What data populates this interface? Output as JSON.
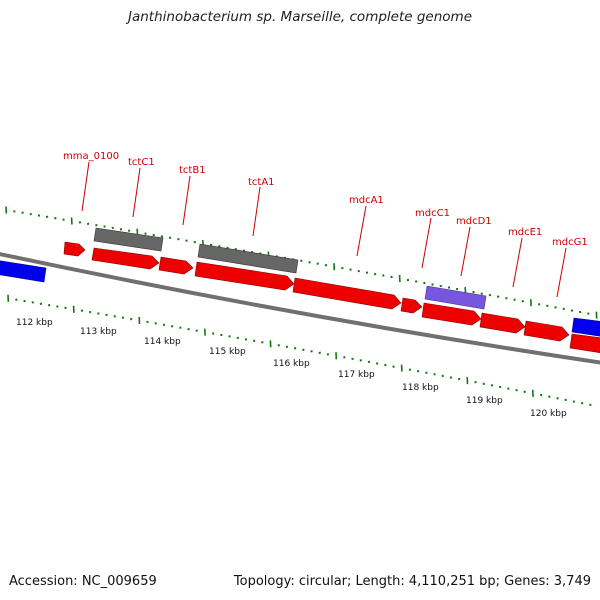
{
  "header": {
    "title": "Janthinobacterium sp. Marseille, complete genome"
  },
  "footer": {
    "accession": "Accession: NC_009659",
    "summary": "Topology: circular; Length: 4,110,251 bp; Genes: 3,749"
  },
  "colors": {
    "cds": "#ee0000",
    "other_strand_cds": "#0000ee",
    "grey_feature": "#666666",
    "purple_feature": "#7755dd",
    "tick": "#117711",
    "label": "#cc0000"
  },
  "gene_labels": [
    {
      "name": "mma_0100"
    },
    {
      "name": "tctC1"
    },
    {
      "name": "tctB1"
    },
    {
      "name": "tctA1"
    },
    {
      "name": "mdcA1"
    },
    {
      "name": "mdcC1"
    },
    {
      "name": "mdcD1"
    },
    {
      "name": "mdcE1"
    },
    {
      "name": "mdcG1"
    }
  ],
  "scale_labels": [
    "112 kbp",
    "113 kbp",
    "114 kbp",
    "115 kbp",
    "116 kbp",
    "117 kbp",
    "118 kbp",
    "119 kbp",
    "120 kbp"
  ]
}
